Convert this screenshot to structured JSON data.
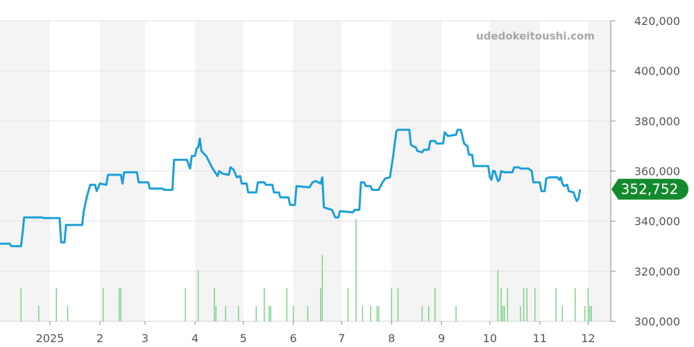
{
  "chart_data": {
    "type": "line",
    "watermark": "udedokeitoushi.com",
    "current_value_label": "352,752",
    "colors": {
      "line": "#1a9fd9",
      "volume": "#7fcf8a",
      "band": "#f4f4f4",
      "grid": "#e2e2e2",
      "badge": "#138a2e"
    },
    "ylim": [
      300000,
      420000
    ],
    "y_ticks": [
      {
        "value": 300000,
        "label": "300,000"
      },
      {
        "value": 320000,
        "label": "320,000"
      },
      {
        "value": 340000,
        "label": "340,000"
      },
      {
        "value": 360000,
        "label": "360,000"
      },
      {
        "value": 380000,
        "label": "380,000"
      },
      {
        "value": 400000,
        "label": "400,000"
      },
      {
        "value": 420000,
        "label": "420,000"
      }
    ],
    "x_start": "2024-12-01",
    "x_end": "2025-12-15",
    "x_ticks": [
      {
        "date": "2025-01-01",
        "label": "2025"
      },
      {
        "date": "2025-02-01",
        "label": "2"
      },
      {
        "date": "2025-03-01",
        "label": "3"
      },
      {
        "date": "2025-04-01",
        "label": "4"
      },
      {
        "date": "2025-05-01",
        "label": "5"
      },
      {
        "date": "2025-06-01",
        "label": "6"
      },
      {
        "date": "2025-07-01",
        "label": "7"
      },
      {
        "date": "2025-08-01",
        "label": "8"
      },
      {
        "date": "2025-09-01",
        "label": "9"
      },
      {
        "date": "2025-10-01",
        "label": "10"
      },
      {
        "date": "2025-11-01",
        "label": "11"
      },
      {
        "date": "2025-12-01",
        "label": "12"
      }
    ],
    "shaded_months": [
      [
        "2024-12-01",
        "2025-01-01"
      ],
      [
        "2025-02-01",
        "2025-03-01"
      ],
      [
        "2025-04-01",
        "2025-05-01"
      ],
      [
        "2025-06-01",
        "2025-07-01"
      ],
      [
        "2025-08-01",
        "2025-09-01"
      ],
      [
        "2025-10-01",
        "2025-11-01"
      ],
      [
        "2025-12-01",
        "2025-12-15"
      ]
    ],
    "series": [
      {
        "points": [
          [
            "2024-12-01",
            331000
          ],
          [
            "2024-12-07",
            331000
          ],
          [
            "2024-12-08",
            330000
          ],
          [
            "2024-12-14",
            330000
          ],
          [
            "2024-12-15",
            335000
          ],
          [
            "2024-12-16",
            341500
          ],
          [
            "2024-12-27",
            341500
          ],
          [
            "2024-12-28",
            341200
          ],
          [
            "2025-01-07",
            341200
          ],
          [
            "2025-01-08",
            331500
          ],
          [
            "2025-01-10",
            331500
          ],
          [
            "2025-01-11",
            338500
          ],
          [
            "2025-01-21",
            338500
          ],
          [
            "2025-01-22",
            344000
          ],
          [
            "2025-01-24",
            350000
          ],
          [
            "2025-01-26",
            354500
          ],
          [
            "2025-01-29",
            354500
          ],
          [
            "2025-01-30",
            352000
          ],
          [
            "2025-02-01",
            355000
          ],
          [
            "2025-02-05",
            354500
          ],
          [
            "2025-02-06",
            358500
          ],
          [
            "2025-02-14",
            358500
          ],
          [
            "2025-02-15",
            355000
          ],
          [
            "2025-02-16",
            359500
          ],
          [
            "2025-02-24",
            359500
          ],
          [
            "2025-02-25",
            355500
          ],
          [
            "2025-03-03",
            355500
          ],
          [
            "2025-03-04",
            353000
          ],
          [
            "2025-03-12",
            353000
          ],
          [
            "2025-03-13",
            352500
          ],
          [
            "2025-03-18",
            352500
          ],
          [
            "2025-03-19",
            364500
          ],
          [
            "2025-03-27",
            364500
          ],
          [
            "2025-03-29",
            361000
          ],
          [
            "2025-03-30",
            366000
          ],
          [
            "2025-04-01",
            366000
          ],
          [
            "2025-04-02",
            369000
          ],
          [
            "2025-04-03",
            369500
          ],
          [
            "2025-04-04",
            373000
          ],
          [
            "2025-04-05",
            368000
          ],
          [
            "2025-04-08",
            366000
          ],
          [
            "2025-04-10",
            363500
          ],
          [
            "2025-04-12",
            361000
          ],
          [
            "2025-04-15",
            358000
          ],
          [
            "2025-04-16",
            360000
          ],
          [
            "2025-04-18",
            359000
          ],
          [
            "2025-04-22",
            358500
          ],
          [
            "2025-04-23",
            361500
          ],
          [
            "2025-04-25",
            360500
          ],
          [
            "2025-04-27",
            357500
          ],
          [
            "2025-04-29",
            358000
          ],
          [
            "2025-04-30",
            355000
          ],
          [
            "2025-05-03",
            355000
          ],
          [
            "2025-05-04",
            351500
          ],
          [
            "2025-05-09",
            351500
          ],
          [
            "2025-05-10",
            355500
          ],
          [
            "2025-05-14",
            355500
          ],
          [
            "2025-05-15",
            354500
          ],
          [
            "2025-05-19",
            354500
          ],
          [
            "2025-05-20",
            351500
          ],
          [
            "2025-05-23",
            351500
          ],
          [
            "2025-05-24",
            349500
          ],
          [
            "2025-05-29",
            349500
          ],
          [
            "2025-05-30",
            346500
          ],
          [
            "2025-06-02",
            346500
          ],
          [
            "2025-06-03",
            354000
          ],
          [
            "2025-06-11",
            353500
          ],
          [
            "2025-06-13",
            355500
          ],
          [
            "2025-06-15",
            356000
          ],
          [
            "2025-06-18",
            355000
          ],
          [
            "2025-06-19",
            357500
          ],
          [
            "2025-06-20",
            345500
          ],
          [
            "2025-06-25",
            344500
          ],
          [
            "2025-06-27",
            341500
          ],
          [
            "2025-06-29",
            341500
          ],
          [
            "2025-06-30",
            344000
          ],
          [
            "2025-07-08",
            343500
          ],
          [
            "2025-07-09",
            344500
          ],
          [
            "2025-07-12",
            344500
          ],
          [
            "2025-07-13",
            355500
          ],
          [
            "2025-07-15",
            355500
          ],
          [
            "2025-07-16",
            354000
          ],
          [
            "2025-07-19",
            354000
          ],
          [
            "2025-07-20",
            352500
          ],
          [
            "2025-07-24",
            352500
          ],
          [
            "2025-07-26",
            355000
          ],
          [
            "2025-07-28",
            357000
          ],
          [
            "2025-07-31",
            357500
          ],
          [
            "2025-08-02",
            366000
          ],
          [
            "2025-08-04",
            376000
          ],
          [
            "2025-08-05",
            376500
          ],
          [
            "2025-08-12",
            376500
          ],
          [
            "2025-08-13",
            370500
          ],
          [
            "2025-08-14",
            370000
          ],
          [
            "2025-08-16",
            369500
          ],
          [
            "2025-08-17",
            368000
          ],
          [
            "2025-08-20",
            367500
          ],
          [
            "2025-08-21",
            368500
          ],
          [
            "2025-08-24",
            368500
          ],
          [
            "2025-08-25",
            372000
          ],
          [
            "2025-08-28",
            372000
          ],
          [
            "2025-08-29",
            371000
          ],
          [
            "2025-09-02",
            371000
          ],
          [
            "2025-09-03",
            375500
          ],
          [
            "2025-09-05",
            374000
          ],
          [
            "2025-09-10",
            374500
          ],
          [
            "2025-09-11",
            376500
          ],
          [
            "2025-09-13",
            376500
          ],
          [
            "2025-09-15",
            371000
          ],
          [
            "2025-09-17",
            370000
          ],
          [
            "2025-09-18",
            366500
          ],
          [
            "2025-09-20",
            366500
          ],
          [
            "2025-09-21",
            362000
          ],
          [
            "2025-09-30",
            362000
          ],
          [
            "2025-10-01",
            357500
          ],
          [
            "2025-10-02",
            356500
          ],
          [
            "2025-10-03",
            360000
          ],
          [
            "2025-10-04",
            360000
          ],
          [
            "2025-10-05",
            358000
          ],
          [
            "2025-10-06",
            356000
          ],
          [
            "2025-10-07",
            356500
          ],
          [
            "2025-10-08",
            360000
          ],
          [
            "2025-10-10",
            359500
          ],
          [
            "2025-10-15",
            359500
          ],
          [
            "2025-10-16",
            361500
          ],
          [
            "2025-10-19",
            361500
          ],
          [
            "2025-10-20",
            361000
          ],
          [
            "2025-10-25",
            361000
          ],
          [
            "2025-10-27",
            360000
          ],
          [
            "2025-10-28",
            355500
          ],
          [
            "2025-11-01",
            355500
          ],
          [
            "2025-11-02",
            352000
          ],
          [
            "2025-11-04",
            352000
          ],
          [
            "2025-11-05",
            357000
          ],
          [
            "2025-11-07",
            357500
          ],
          [
            "2025-11-12",
            357500
          ],
          [
            "2025-11-13",
            356500
          ],
          [
            "2025-11-14",
            357500
          ],
          [
            "2025-11-15",
            355000
          ],
          [
            "2025-11-16",
            354000
          ],
          [
            "2025-11-18",
            354500
          ],
          [
            "2025-11-19",
            352000
          ],
          [
            "2025-11-22",
            351500
          ],
          [
            "2025-11-23",
            349500
          ],
          [
            "2025-11-24",
            348000
          ],
          [
            "2025-11-25",
            349000
          ],
          [
            "2025-11-26",
            352752
          ]
        ]
      }
    ],
    "volume_bars": [
      [
        "2024-12-14",
        13
      ],
      [
        "2024-12-25",
        6
      ],
      [
        "2025-01-05",
        13
      ],
      [
        "2025-01-12",
        6
      ],
      [
        "2025-02-03",
        13
      ],
      [
        "2025-02-13",
        13
      ],
      [
        "2025-02-14",
        13
      ],
      [
        "2025-03-26",
        13
      ],
      [
        "2025-04-03",
        20
      ],
      [
        "2025-04-13",
        13
      ],
      [
        "2025-04-14",
        6
      ],
      [
        "2025-04-20",
        6
      ],
      [
        "2025-04-28",
        6
      ],
      [
        "2025-05-09",
        6
      ],
      [
        "2025-05-14",
        13
      ],
      [
        "2025-05-17",
        6
      ],
      [
        "2025-05-18",
        6
      ],
      [
        "2025-05-28",
        13
      ],
      [
        "2025-06-01",
        6
      ],
      [
        "2025-06-10",
        6
      ],
      [
        "2025-06-18",
        13
      ],
      [
        "2025-06-19",
        26
      ],
      [
        "2025-07-05",
        13
      ],
      [
        "2025-07-10",
        40
      ],
      [
        "2025-07-14",
        6
      ],
      [
        "2025-07-19",
        6
      ],
      [
        "2025-07-23",
        6
      ],
      [
        "2025-07-24",
        6
      ],
      [
        "2025-08-01",
        13
      ],
      [
        "2025-08-05",
        13
      ],
      [
        "2025-08-20",
        6
      ],
      [
        "2025-08-24",
        6
      ],
      [
        "2025-08-28",
        13
      ],
      [
        "2025-09-10",
        6
      ],
      [
        "2025-10-06",
        20
      ],
      [
        "2025-10-08",
        13
      ],
      [
        "2025-10-09",
        6
      ],
      [
        "2025-10-10",
        6
      ],
      [
        "2025-10-12",
        13
      ],
      [
        "2025-10-20",
        6
      ],
      [
        "2025-10-22",
        13
      ],
      [
        "2025-10-24",
        13
      ],
      [
        "2025-10-29",
        13
      ],
      [
        "2025-11-11",
        13
      ],
      [
        "2025-11-15",
        6
      ],
      [
        "2025-11-23",
        13
      ],
      [
        "2025-11-29",
        6
      ],
      [
        "2025-12-01",
        13
      ],
      [
        "2025-12-02",
        6
      ],
      [
        "2025-12-03",
        6
      ]
    ]
  }
}
